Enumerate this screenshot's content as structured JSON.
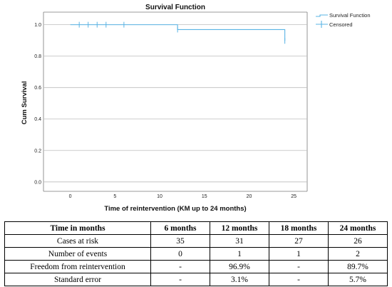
{
  "chart_data": {
    "type": "line",
    "title": "Survival Function",
    "xlabel": "Time of reintervention (KM up to 24 months)",
    "ylabel": "Cum Survival",
    "xlim": [
      -3,
      26.5
    ],
    "ylim": [
      -0.06,
      1.08
    ],
    "xticks": [
      0,
      5,
      10,
      15,
      20,
      25
    ],
    "yticks": [
      0.0,
      0.2,
      0.4,
      0.6,
      0.8,
      1.0
    ],
    "xtick_labels": [
      "0",
      "5",
      "10",
      "15",
      "20",
      "25"
    ],
    "ytick_labels": [
      "0.0",
      "0.2",
      "0.4",
      "0.6",
      "0.8",
      "1.0"
    ],
    "grid": true,
    "legend_position": "top-right",
    "series": [
      {
        "name": "Survival Function",
        "step": true,
        "x": [
          0,
          12,
          24
        ],
        "y": [
          1.0,
          0.969,
          0.897
        ],
        "end_x": 24
      }
    ],
    "censored": {
      "name": "Censored",
      "x": [
        1,
        2,
        3,
        4,
        6,
        12,
        24
      ],
      "y": [
        1.0,
        1.0,
        1.0,
        1.0,
        1.0,
        0.969,
        0.897
      ]
    },
    "colors": {
      "line": "#5ab4e5",
      "censor": "#5ab4e5"
    }
  },
  "table": {
    "headers": [
      "Time in months",
      "6 months",
      "12 months",
      "18 months",
      "24 months"
    ],
    "rows": [
      [
        "Cases at risk",
        "35",
        "31",
        "27",
        "26"
      ],
      [
        "Number of events",
        "0",
        "1",
        "1",
        "2"
      ],
      [
        "Freedom from reintervention",
        "-",
        "96.9%",
        "-",
        "89.7%"
      ],
      [
        "Standard error",
        "-",
        "3.1%",
        "-",
        "5.7%"
      ]
    ]
  }
}
